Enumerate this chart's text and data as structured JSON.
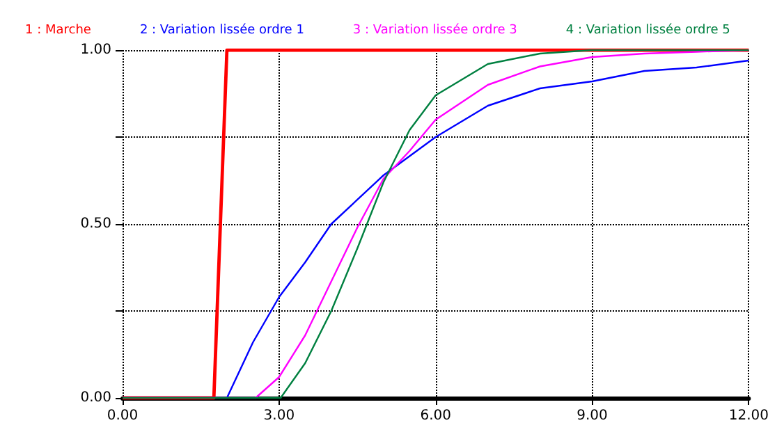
{
  "chart_data": {
    "type": "line",
    "legend": "top",
    "grid": true,
    "marker": "none",
    "line_style": "solid",
    "xlim": [
      0,
      12
    ],
    "xticks": [
      {
        "value": 0,
        "label": "0.00"
      },
      {
        "value": 3,
        "label": "3.00"
      },
      {
        "value": 6,
        "label": "6.00"
      },
      {
        "value": 9,
        "label": "9.00"
      },
      {
        "value": 12,
        "label": "12.00"
      }
    ],
    "ylim": [
      0,
      1
    ],
    "yticks": [
      {
        "value": 0,
        "label": "0.00"
      },
      {
        "value": 0.25,
        "label": null
      },
      {
        "value": 0.5,
        "label": "0.50"
      },
      {
        "value": 0.75,
        "label": null
      },
      {
        "value": 1,
        "label": "1.00"
      }
    ],
    "series": [
      {
        "name": "1 : Marche",
        "color": "#ff0000",
        "x": [
          0,
          1.75,
          2,
          12
        ],
        "values": [
          0,
          0,
          1,
          1
        ]
      },
      {
        "name": "2 : Variation lissée ordre 1",
        "color": "#0000ff",
        "x": [
          0,
          2,
          2.5,
          3,
          3.5,
          4,
          5,
          6,
          7,
          8,
          9,
          10,
          11,
          12
        ],
        "values": [
          0,
          0,
          0.16,
          0.29,
          0.39,
          0.5,
          0.64,
          0.75,
          0.84,
          0.89,
          0.91,
          0.94,
          0.95,
          0.97
        ]
      },
      {
        "name": "3 : Variation lissée ordre 3",
        "color": "#ff00ff",
        "x": [
          0,
          2.55,
          3,
          3.5,
          4,
          4.5,
          5,
          5.5,
          6,
          7,
          8,
          9,
          10,
          11,
          12
        ],
        "values": [
          0,
          0,
          0.06,
          0.18,
          0.335,
          0.49,
          0.63,
          0.71,
          0.8,
          0.9,
          0.953,
          0.98,
          0.99,
          0.995,
          1
        ]
      },
      {
        "name": "4 : Variation lissée ordre 5",
        "color": "#008040",
        "x": [
          0,
          3.03,
          3.5,
          4,
          4.5,
          5,
          5.5,
          6,
          7,
          8,
          9,
          12
        ],
        "values": [
          0,
          0,
          0.1,
          0.25,
          0.43,
          0.62,
          0.77,
          0.87,
          0.96,
          0.99,
          1,
          1
        ]
      }
    ]
  }
}
